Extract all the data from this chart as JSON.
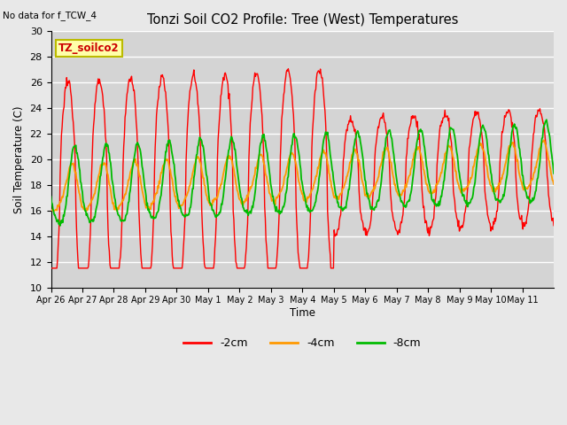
{
  "title": "Tonzi Soil CO2 Profile: Tree (West) Temperatures",
  "note": "No data for f_TCW_4",
  "ylabel": "Soil Temperature (C)",
  "xlabel": "Time",
  "legend_label": "TZ_soilco2",
  "ylim": [
    10,
    30
  ],
  "series_labels": [
    "-2cm",
    "-4cm",
    "-8cm"
  ],
  "series_colors": [
    "#ff0000",
    "#ff9900",
    "#00bb00"
  ],
  "x_tick_labels": [
    "Apr 26",
    "Apr 27",
    "Apr 28",
    "Apr 29",
    "Apr 30",
    "May 1",
    "May 2",
    "May 3",
    "May 4",
    "May 5",
    "May 6",
    "May 7",
    "May 8",
    "May 9",
    "May 10",
    "May 11"
  ],
  "yticks": [
    10,
    12,
    14,
    16,
    18,
    20,
    22,
    24,
    26,
    28,
    30
  ],
  "bg_color": "#e8e8e8",
  "plot_bg_color": "#d4d4d4",
  "grid_color": "#ffffff",
  "figsize": [
    6.4,
    4.8
  ],
  "dpi": 100
}
